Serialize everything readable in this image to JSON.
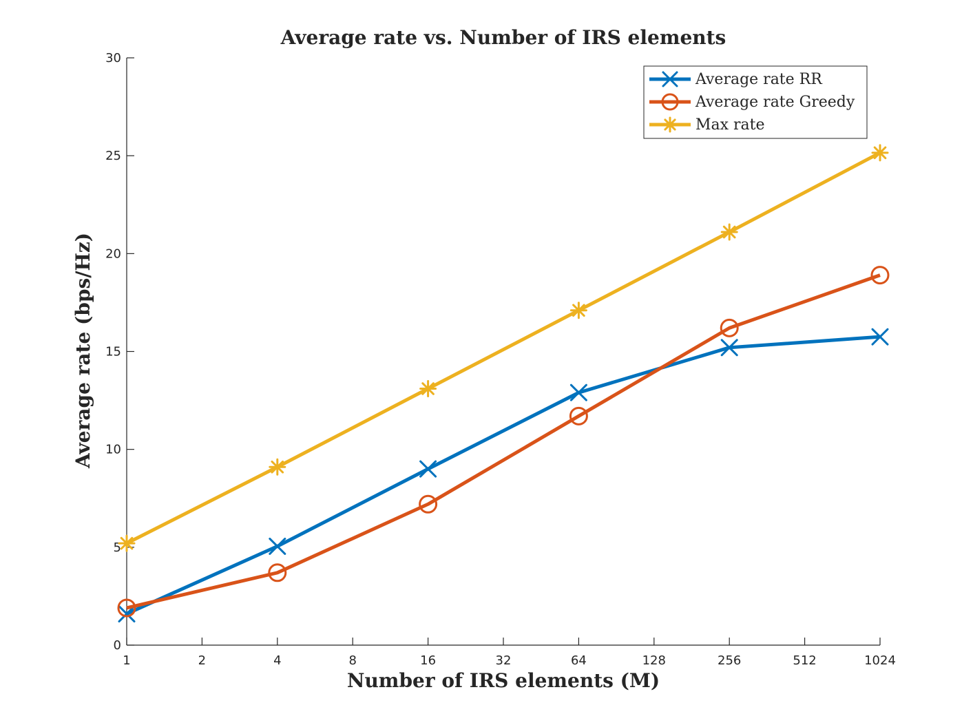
{
  "chart_data": {
    "type": "line",
    "title": "Average rate vs. Number of IRS elements",
    "xlabel": "Number of IRS elements (M)",
    "ylabel": "Average rate (bps/Hz)",
    "x_scale": "log2",
    "x": [
      1,
      4,
      16,
      64,
      256,
      1024
    ],
    "x_ticks": [
      "1",
      "2",
      "4",
      "8",
      "16",
      "32",
      "64",
      "128",
      "256",
      "512",
      "1024"
    ],
    "y_ticks": [
      "0",
      "5",
      "10",
      "15",
      "20",
      "25",
      "30"
    ],
    "xlim": [
      1,
      1024
    ],
    "ylim": [
      0,
      30
    ],
    "grid": false,
    "legend_position": "top-right",
    "series": [
      {
        "name": "Average rate RR",
        "color": "#0072BD",
        "marker": "x",
        "values": [
          1.6,
          5.05,
          9.0,
          12.9,
          15.2,
          15.75
        ]
      },
      {
        "name": "Average rate Greedy",
        "color": "#D95319",
        "marker": "o",
        "values": [
          1.9,
          3.7,
          7.2,
          11.7,
          16.2,
          18.9
        ]
      },
      {
        "name": "Max rate",
        "color": "#EDB120",
        "marker": "*",
        "values": [
          5.2,
          9.1,
          13.1,
          17.1,
          21.1,
          25.15
        ]
      }
    ]
  }
}
